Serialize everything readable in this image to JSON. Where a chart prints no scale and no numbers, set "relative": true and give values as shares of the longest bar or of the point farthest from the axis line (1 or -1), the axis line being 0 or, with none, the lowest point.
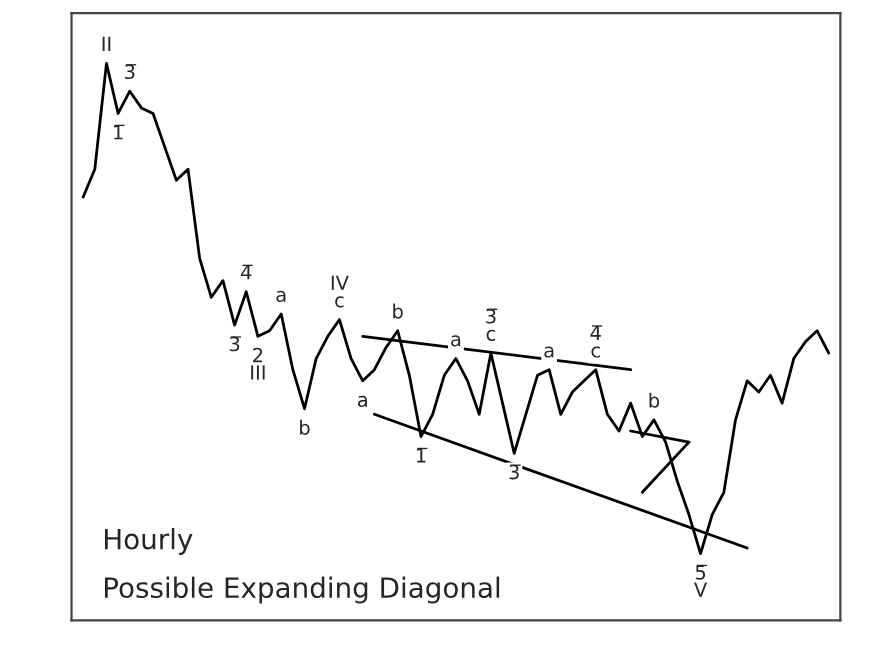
{
  "chart_data": {
    "type": "line",
    "relative": true,
    "legend": false,
    "categories": [
      null,
      null,
      null,
      null,
      null,
      null,
      null,
      null,
      null,
      null,
      null,
      null,
      null,
      null,
      null,
      null,
      null,
      null,
      null,
      null,
      null,
      null,
      null,
      null,
      null,
      null,
      null,
      null,
      null,
      null,
      null,
      null,
      null,
      null,
      null,
      null,
      null,
      null,
      null,
      null,
      null,
      null,
      null,
      null,
      null,
      null,
      null,
      null,
      null,
      null,
      null,
      null,
      null,
      null,
      null,
      null,
      null,
      null,
      null,
      null,
      null,
      null,
      null,
      null,
      null
    ],
    "series": [
      {
        "color": "#000000",
        "values": [
          0.76,
          0.81,
          1,
          0.91,
          0.95,
          0.92,
          0.91,
          0.85,
          0.79,
          0.81,
          0.65,
          0.58,
          0.61,
          0.53,
          0.59,
          0.51,
          0.52,
          0.55,
          0.45,
          0.38,
          0.47,
          0.51,
          0.54,
          0.47,
          0.43,
          0.45,
          0.49,
          0.52,
          0.44,
          0.33,
          0.37,
          0.44,
          0.47,
          0.43,
          0.37,
          0.48,
          0.39,
          0.3,
          0.37,
          0.44,
          0.45,
          0.37,
          0.41,
          0.43,
          0.45,
          0.37,
          0.34,
          0.39,
          0.33,
          0.36,
          0.32,
          0.25,
          0.19,
          0.12,
          0.19,
          0.23,
          0.36,
          0.43,
          0.41,
          0.44,
          0.39,
          0.47,
          0.5,
          0.52,
          0.48
        ]
      },
      {
        "type": "line",
        "color": "#000000",
        "values": [
          null,
          null,
          null,
          null,
          null,
          null,
          null,
          null,
          null,
          null,
          null,
          null,
          null,
          null,
          null,
          null,
          null,
          null,
          null,
          null,
          null,
          null,
          null,
          null,
          0.51,
          null,
          null,
          null,
          null,
          null,
          null,
          null,
          null,
          null,
          null,
          null,
          null,
          null,
          null,
          null,
          null,
          null,
          null,
          null,
          null,
          null,
          null,
          0.45,
          null,
          null,
          null,
          null,
          null,
          null,
          null,
          null,
          null,
          null,
          null,
          null,
          null,
          null,
          null,
          null,
          null
        ]
      },
      {
        "type": "line",
        "color": "#000000",
        "values": [
          null,
          null,
          null,
          null,
          null,
          null,
          null,
          null,
          null,
          null,
          null,
          null,
          null,
          null,
          null,
          null,
          null,
          null,
          null,
          null,
          null,
          null,
          null,
          null,
          null,
          0.37,
          null,
          null,
          null,
          null,
          null,
          null,
          null,
          null,
          null,
          null,
          null,
          null,
          null,
          null,
          null,
          null,
          null,
          null,
          null,
          null,
          null,
          null,
          null,
          null,
          null,
          null,
          null,
          null,
          null,
          null,
          null,
          0.13,
          null,
          null,
          null,
          null,
          null,
          null,
          null
        ]
      },
      {
        "type": "line",
        "color": "#000000",
        "values": [
          null,
          null,
          null,
          null,
          null,
          null,
          null,
          null,
          null,
          null,
          null,
          null,
          null,
          null,
          null,
          null,
          null,
          null,
          null,
          null,
          null,
          null,
          null,
          null,
          null,
          null,
          null,
          null,
          null,
          null,
          null,
          null,
          null,
          null,
          null,
          null,
          null,
          null,
          null,
          null,
          null,
          null,
          null,
          null,
          null,
          null,
          null,
          null,
          0.23,
          null,
          null,
          null,
          0.32,
          null,
          null,
          null,
          null,
          null,
          null,
          null,
          null,
          null,
          null,
          null,
          null
        ]
      },
      {
        "type": "line",
        "color": "#000000",
        "values": [
          null,
          null,
          null,
          null,
          null,
          null,
          null,
          null,
          null,
          null,
          null,
          null,
          null,
          null,
          null,
          null,
          null,
          null,
          null,
          null,
          null,
          null,
          null,
          null,
          null,
          null,
          null,
          null,
          null,
          null,
          null,
          null,
          null,
          null,
          null,
          null,
          null,
          null,
          null,
          null,
          null,
          null,
          null,
          null,
          null,
          null,
          null,
          0.34,
          null,
          null,
          null,
          null,
          0.32,
          null,
          null,
          null,
          null,
          null,
          null,
          null,
          null,
          null,
          null,
          null,
          null
        ]
      }
    ],
    "annotations": [
      {
        "text": "II",
        "y": 1
      },
      {
        "text": "1̅",
        "y": 0.91
      },
      {
        "text": "3̅",
        "y": 0.95
      },
      {
        "text": "3̅",
        "y": 0.53
      },
      {
        "text": "4̅",
        "y": 0.59
      },
      {
        "text": "2\nIII",
        "y": 0.51
      },
      {
        "text": "a",
        "y": 0.55
      },
      {
        "text": "b",
        "y": 0.38
      },
      {
        "text": "IV\nc",
        "y": 0.54
      },
      {
        "text": "a",
        "y": 0.43
      },
      {
        "text": "b",
        "y": 0.52
      },
      {
        "text": "1̅",
        "y": 0.33
      },
      {
        "text": "a",
        "y": 0.47
      },
      {
        "text": "3̅\nc",
        "y": 0.48
      },
      {
        "text": "3̅",
        "y": 0.3
      },
      {
        "text": "a",
        "y": 0.45
      },
      {
        "text": "4̅\nc",
        "y": 0.45
      },
      {
        "text": "b",
        "y": 0.36
      },
      {
        "text": "5̅\nV",
        "y": 0.12
      },
      "Hourly",
      "Possible Expanding Diagonal"
    ]
  }
}
